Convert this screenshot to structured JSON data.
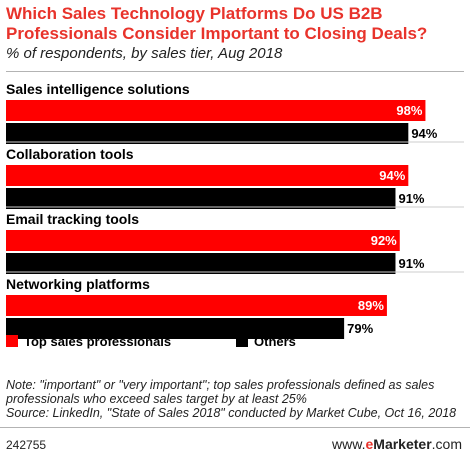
{
  "title": "Which Sales Technology Platforms Do US B2B Professionals Consider Important to Closing Deals?",
  "subtitle": "% of respondents, by sales tier, Aug 2018",
  "note": "Note: \"important\" or \"very important\"; top sales professionals defined as sales professionals who exceed sales target by at least 25%",
  "source": "Source: LinkedIn, \"State of Sales 2018\" conducted by Market Cube, Oct 16, 2018",
  "footer_id": "242755",
  "brand": {
    "prefix": "www.",
    "logo_e": "e",
    "logo_rest": "Marketer",
    "suffix": ".com"
  },
  "colors": {
    "top": "#ff0000",
    "others": "#000000",
    "title": "#e8332b"
  },
  "chart_data": {
    "type": "bar",
    "orientation": "horizontal",
    "title": "Which Sales Technology Platforms Do US B2B Professionals Consider Important to Closing Deals?",
    "subtitle": "% of respondents, by sales tier, Aug 2018",
    "categories": [
      "Sales intelligence solutions",
      "Collaboration tools",
      "Email tracking tools",
      "Networking platforms"
    ],
    "series": [
      {
        "name": "Top sales professionals",
        "values": [
          98,
          94,
          92,
          89
        ],
        "color": "#ff0000"
      },
      {
        "name": "Others",
        "values": [
          94,
          91,
          91,
          79
        ],
        "color": "#000000"
      }
    ],
    "value_suffix": "%",
    "xlim": [
      0,
      100
    ],
    "grid": false,
    "legend": "bottom-left"
  }
}
